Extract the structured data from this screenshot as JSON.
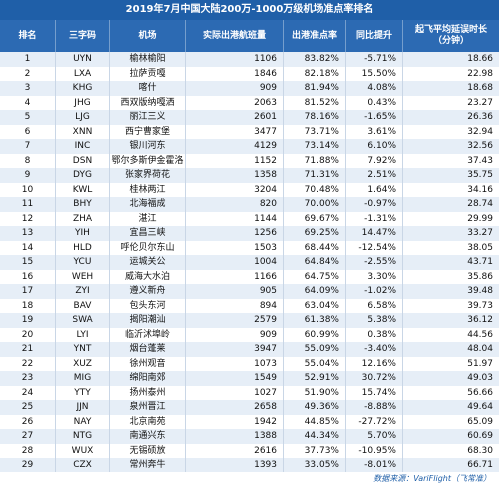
{
  "title": "2019年7月中国大陆200万-1000万级机场准点率排名",
  "headers": {
    "rank": "排名",
    "code": "三字码",
    "airport": "机场",
    "departures": "实际出港航班量",
    "ontime": "出港准点率",
    "change": "同比提升",
    "delay": "起飞平均延误时长",
    "delay_unit": "（分钟）"
  },
  "rows": [
    {
      "rank": "1",
      "code": "UYN",
      "airport": "榆林榆阳",
      "departures": "1106",
      "ontime": "83.82%",
      "change": "-5.71%",
      "delay": "18.66"
    },
    {
      "rank": "2",
      "code": "LXA",
      "airport": "拉萨贡嘎",
      "departures": "1846",
      "ontime": "82.18%",
      "change": "15.50%",
      "delay": "22.98"
    },
    {
      "rank": "3",
      "code": "KHG",
      "airport": "喀什",
      "departures": "909",
      "ontime": "81.94%",
      "change": "4.08%",
      "delay": "18.68"
    },
    {
      "rank": "4",
      "code": "JHG",
      "airport": "西双版纳嘎洒",
      "departures": "2063",
      "ontime": "81.52%",
      "change": "0.43%",
      "delay": "23.27"
    },
    {
      "rank": "5",
      "code": "LJG",
      "airport": "丽江三义",
      "departures": "2601",
      "ontime": "78.16%",
      "change": "-1.65%",
      "delay": "26.36"
    },
    {
      "rank": "6",
      "code": "XNN",
      "airport": "西宁曹家堡",
      "departures": "3477",
      "ontime": "73.71%",
      "change": "3.61%",
      "delay": "32.94"
    },
    {
      "rank": "7",
      "code": "INC",
      "airport": "银川河东",
      "departures": "4129",
      "ontime": "73.14%",
      "change": "6.10%",
      "delay": "32.56"
    },
    {
      "rank": "8",
      "code": "DSN",
      "airport": "鄂尔多斯伊金霍洛",
      "departures": "1152",
      "ontime": "71.88%",
      "change": "7.92%",
      "delay": "37.43"
    },
    {
      "rank": "9",
      "code": "DYG",
      "airport": "张家界荷花",
      "departures": "1358",
      "ontime": "71.31%",
      "change": "2.51%",
      "delay": "35.75"
    },
    {
      "rank": "10",
      "code": "KWL",
      "airport": "桂林两江",
      "departures": "3204",
      "ontime": "70.48%",
      "change": "1.64%",
      "delay": "34.16"
    },
    {
      "rank": "11",
      "code": "BHY",
      "airport": "北海福成",
      "departures": "820",
      "ontime": "70.00%",
      "change": "-0.97%",
      "delay": "28.74"
    },
    {
      "rank": "12",
      "code": "ZHA",
      "airport": "湛江",
      "departures": "1144",
      "ontime": "69.67%",
      "change": "-1.31%",
      "delay": "29.99"
    },
    {
      "rank": "13",
      "code": "YIH",
      "airport": "宜昌三峡",
      "departures": "1256",
      "ontime": "69.25%",
      "change": "14.47%",
      "delay": "33.27"
    },
    {
      "rank": "14",
      "code": "HLD",
      "airport": "呼伦贝尔东山",
      "departures": "1503",
      "ontime": "68.44%",
      "change": "-12.54%",
      "delay": "38.05"
    },
    {
      "rank": "15",
      "code": "YCU",
      "airport": "运城关公",
      "departures": "1004",
      "ontime": "64.84%",
      "change": "-2.55%",
      "delay": "43.71"
    },
    {
      "rank": "16",
      "code": "WEH",
      "airport": "威海大水泊",
      "departures": "1166",
      "ontime": "64.75%",
      "change": "3.30%",
      "delay": "35.86"
    },
    {
      "rank": "17",
      "code": "ZYI",
      "airport": "遵义新舟",
      "departures": "905",
      "ontime": "64.09%",
      "change": "-1.02%",
      "delay": "39.48"
    },
    {
      "rank": "18",
      "code": "BAV",
      "airport": "包头东河",
      "departures": "894",
      "ontime": "63.04%",
      "change": "6.58%",
      "delay": "39.73"
    },
    {
      "rank": "19",
      "code": "SWA",
      "airport": "揭阳潮汕",
      "departures": "2579",
      "ontime": "61.38%",
      "change": "5.38%",
      "delay": "36.12"
    },
    {
      "rank": "20",
      "code": "LYI",
      "airport": "临沂沭埠岭",
      "departures": "909",
      "ontime": "60.99%",
      "change": "0.38%",
      "delay": "44.56"
    },
    {
      "rank": "21",
      "code": "YNT",
      "airport": "烟台蓬莱",
      "departures": "3947",
      "ontime": "55.09%",
      "change": "-3.40%",
      "delay": "48.04"
    },
    {
      "rank": "22",
      "code": "XUZ",
      "airport": "徐州观音",
      "departures": "1073",
      "ontime": "55.04%",
      "change": "12.16%",
      "delay": "51.97"
    },
    {
      "rank": "23",
      "code": "MIG",
      "airport": "绵阳南郊",
      "departures": "1549",
      "ontime": "52.91%",
      "change": "30.72%",
      "delay": "49.03"
    },
    {
      "rank": "24",
      "code": "YTY",
      "airport": "扬州泰州",
      "departures": "1027",
      "ontime": "51.90%",
      "change": "15.74%",
      "delay": "56.66"
    },
    {
      "rank": "25",
      "code": "JJN",
      "airport": "泉州晋江",
      "departures": "2658",
      "ontime": "49.36%",
      "change": "-8.88%",
      "delay": "49.64"
    },
    {
      "rank": "26",
      "code": "NAY",
      "airport": "北京南苑",
      "departures": "1942",
      "ontime": "44.85%",
      "change": "-27.72%",
      "delay": "65.09"
    },
    {
      "rank": "27",
      "code": "NTG",
      "airport": "南通兴东",
      "departures": "1388",
      "ontime": "44.34%",
      "change": "5.70%",
      "delay": "60.69"
    },
    {
      "rank": "28",
      "code": "WUX",
      "airport": "无锡硕放",
      "departures": "2616",
      "ontime": "37.73%",
      "change": "-10.95%",
      "delay": "68.30"
    },
    {
      "rank": "29",
      "code": "CZX",
      "airport": "常州奔牛",
      "departures": "1393",
      "ontime": "33.05%",
      "change": "-8.01%",
      "delay": "66.71"
    }
  ],
  "footer": "数据来源：VariFlight（飞常准）",
  "colors": {
    "header_bg": "#2c6ab3",
    "title_bg": "#1f5fa8",
    "row_alt": "#e6eef7"
  }
}
